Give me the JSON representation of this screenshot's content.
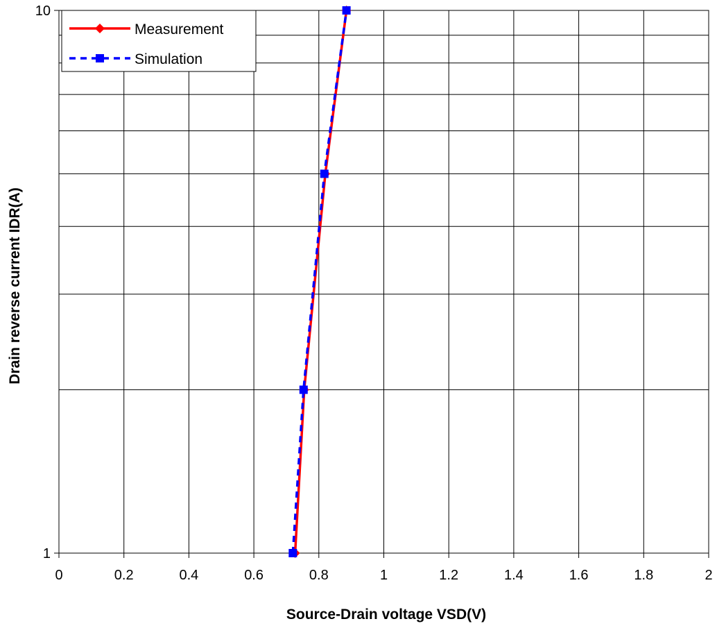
{
  "chart_data": {
    "type": "line",
    "title": "",
    "xlabel": "Source-Drain voltage VSD(V)",
    "ylabel": "Drain reverse current IDR(A)",
    "xlim": [
      0,
      2
    ],
    "ylim": [
      1,
      10
    ],
    "yscale": "log",
    "grid": true,
    "legend_position": "top-left",
    "x_ticks": [
      0,
      0.2,
      0.4,
      0.6,
      0.8,
      1,
      1.2,
      1.4,
      1.6,
      1.8,
      2
    ],
    "x_tick_labels": [
      "0",
      "0.2",
      "0.4",
      "0.6",
      "0.8",
      "1",
      "1.2",
      "1.4",
      "1.6",
      "1.8",
      "2"
    ],
    "y_tick_values": [
      1,
      10
    ],
    "y_tick_labels": [
      "1",
      "10"
    ],
    "y_gridlines": [
      1,
      2,
      3,
      4,
      5,
      6,
      7,
      8,
      9,
      10
    ],
    "series": [
      {
        "name": "Measurement",
        "color": "#ff0000",
        "line_style": "solid",
        "marker": "diamond",
        "points": [
          {
            "x": 0.727,
            "y": 1
          },
          {
            "x": 0.755,
            "y": 2
          },
          {
            "x": 0.82,
            "y": 5
          },
          {
            "x": 0.885,
            "y": 10
          }
        ]
      },
      {
        "name": "Simulation",
        "color": "#0000ff",
        "line_style": "dashed",
        "marker": "square",
        "points": [
          {
            "x": 0.72,
            "y": 1
          },
          {
            "x": 0.753,
            "y": 2
          },
          {
            "x": 0.817,
            "y": 5
          },
          {
            "x": 0.885,
            "y": 10
          }
        ]
      }
    ]
  }
}
